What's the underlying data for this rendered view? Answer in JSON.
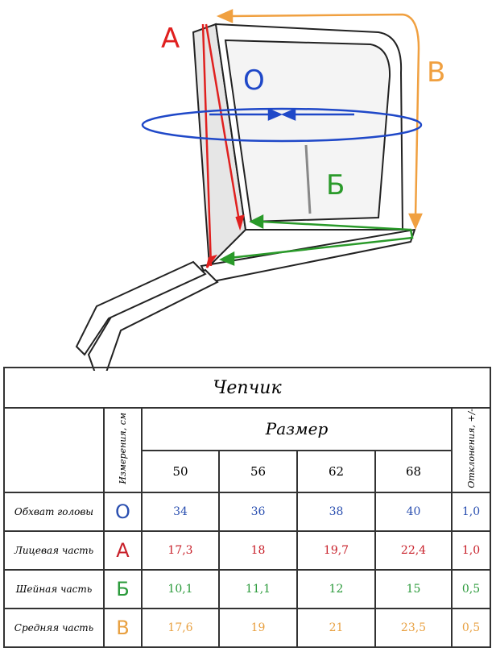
{
  "diagram": {
    "letters": [
      {
        "letter": "А",
        "color": "#e0201f"
      },
      {
        "letter": "О",
        "color": "#1f48c8"
      },
      {
        "letter": "В",
        "color": "#f0a040"
      },
      {
        "letter": "Б",
        "color": "#2a9a2a"
      }
    ]
  },
  "table": {
    "title": "Чепчик",
    "measure_header": "Измерения, см",
    "size_header": "Размер",
    "deviation_header": "Отклонения, +/-",
    "sizes": [
      "50",
      "56",
      "62",
      "68"
    ],
    "rows": [
      {
        "label": "Обхват головы",
        "letter": "О",
        "color": "#2a4fb0",
        "values": [
          "34",
          "36",
          "38",
          "40"
        ],
        "deviation": "1,0"
      },
      {
        "label": "Лицевая часть",
        "letter": "А",
        "color": "#c8202a",
        "values": [
          "17,3",
          "18",
          "19,7",
          "22,4"
        ],
        "deviation": "1,0"
      },
      {
        "label": "Шейная часть",
        "letter": "Б",
        "color": "#2a9a3a",
        "values": [
          "10,1",
          "11,1",
          "12",
          "15"
        ],
        "deviation": "0,5"
      },
      {
        "label": "Средняя часть",
        "letter": "В",
        "color": "#e8a040",
        "values": [
          "17,6",
          "19",
          "21",
          "23,5"
        ],
        "deviation": "0,5"
      }
    ]
  }
}
